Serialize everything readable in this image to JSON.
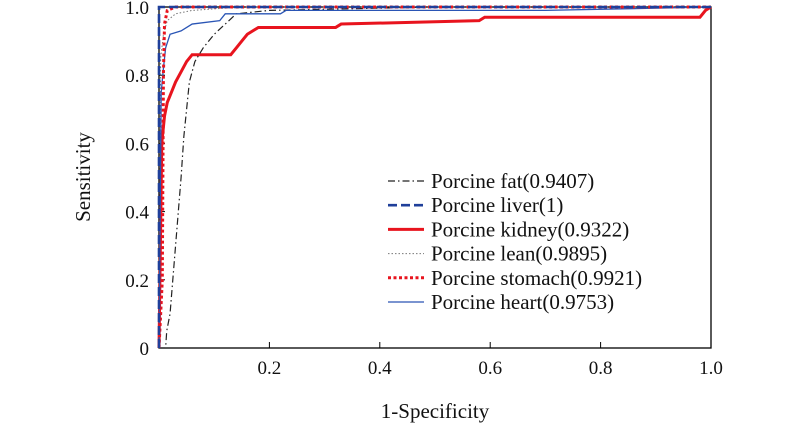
{
  "chart_data": {
    "type": "line",
    "title": "",
    "xlabel": "1-Specificity",
    "ylabel": "Sensitivity",
    "xlim": [
      0,
      1
    ],
    "ylim": [
      0,
      1
    ],
    "xticks": [
      0.2,
      0.4,
      0.6,
      0.8,
      1.0
    ],
    "xtick_labels": [
      "0.2",
      "0.4",
      "0.6",
      "0.8",
      "1.0"
    ],
    "yticks": [
      0,
      0.2,
      0.4,
      0.6,
      0.8,
      1.0
    ],
    "ytick_labels": [
      "0",
      "0.2",
      "0.4",
      "0.6",
      "0.8",
      "1.0"
    ],
    "grid": false,
    "legend_position": "lower-right",
    "series": [
      {
        "name": "Porcine fat(0.9407)",
        "color": "#222222",
        "style": "dashdot",
        "points": [
          [
            0,
            0
          ],
          [
            0.012,
            0
          ],
          [
            0.014,
            0.05
          ],
          [
            0.02,
            0.1
          ],
          [
            0.025,
            0.2
          ],
          [
            0.03,
            0.3
          ],
          [
            0.035,
            0.4
          ],
          [
            0.04,
            0.5
          ],
          [
            0.045,
            0.62
          ],
          [
            0.05,
            0.7
          ],
          [
            0.055,
            0.78
          ],
          [
            0.065,
            0.84
          ],
          [
            0.08,
            0.88
          ],
          [
            0.1,
            0.92
          ],
          [
            0.12,
            0.95
          ],
          [
            0.14,
            0.98
          ],
          [
            0.2,
            0.99
          ],
          [
            0.5,
            1.0
          ],
          [
            1,
            1
          ]
        ]
      },
      {
        "name": "Porcine liver(1)",
        "color": "#1f3f9a",
        "style": "dashed",
        "points": [
          [
            0,
            0
          ],
          [
            0,
            1
          ],
          [
            1,
            1
          ]
        ]
      },
      {
        "name": "Porcine kidney(0.9322)",
        "color": "#e8141e",
        "style": "solid",
        "points": [
          [
            0,
            0
          ],
          [
            0.005,
            0.6
          ],
          [
            0.01,
            0.68
          ],
          [
            0.015,
            0.72
          ],
          [
            0.02,
            0.74
          ],
          [
            0.03,
            0.78
          ],
          [
            0.04,
            0.81
          ],
          [
            0.05,
            0.84
          ],
          [
            0.06,
            0.86
          ],
          [
            0.13,
            0.86
          ],
          [
            0.14,
            0.88
          ],
          [
            0.15,
            0.9
          ],
          [
            0.16,
            0.92
          ],
          [
            0.18,
            0.94
          ],
          [
            0.32,
            0.94
          ],
          [
            0.33,
            0.95
          ],
          [
            0.58,
            0.96
          ],
          [
            0.59,
            0.97
          ],
          [
            0.98,
            0.97
          ],
          [
            0.99,
            0.99
          ],
          [
            1,
            1
          ]
        ]
      },
      {
        "name": "Porcine lean(0.9895)",
        "color": "#777777",
        "style": "dotted",
        "points": [
          [
            0,
            0
          ],
          [
            0.003,
            0.85
          ],
          [
            0.008,
            0.92
          ],
          [
            0.015,
            0.96
          ],
          [
            0.03,
            0.98
          ],
          [
            0.06,
            0.99
          ],
          [
            0.15,
            1.0
          ],
          [
            1,
            1
          ]
        ]
      },
      {
        "name": "Porcine stomach(0.9921)",
        "color": "#e8141e",
        "style": "dotted-bold",
        "points": [
          [
            0,
            0
          ],
          [
            0.006,
            0.2
          ],
          [
            0.008,
            0.8
          ],
          [
            0.01,
            0.95
          ],
          [
            0.015,
            0.99
          ],
          [
            0.03,
            1.0
          ],
          [
            1,
            1
          ]
        ]
      },
      {
        "name": "Porcine heart(0.9753)",
        "color": "#2a55b5",
        "style": "solid-thin",
        "points": [
          [
            0,
            0
          ],
          [
            0.004,
            0.75
          ],
          [
            0.008,
            0.82
          ],
          [
            0.012,
            0.88
          ],
          [
            0.02,
            0.92
          ],
          [
            0.04,
            0.93
          ],
          [
            0.06,
            0.95
          ],
          [
            0.11,
            0.96
          ],
          [
            0.12,
            0.98
          ],
          [
            0.22,
            0.98
          ],
          [
            0.23,
            0.99
          ],
          [
            0.7,
            0.99
          ],
          [
            1,
            1
          ]
        ]
      }
    ]
  }
}
